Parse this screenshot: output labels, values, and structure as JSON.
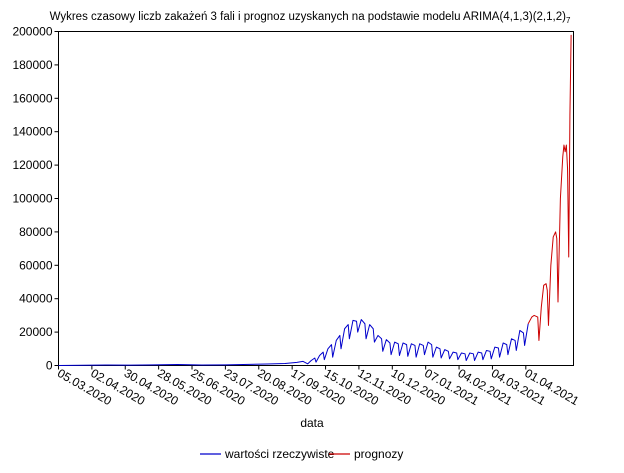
{
  "chart_data": {
    "type": "line",
    "title": "Wykres czasowy liczb zakażeń 3 fali i prognoz uzyskanych na podstawie modelu ARIMA(4,1,3)(2,1,2)",
    "title_subscript": "7",
    "xlabel": "data",
    "ylabel": "",
    "ylim": [
      0,
      200000
    ],
    "yticks": [
      0,
      20000,
      40000,
      60000,
      80000,
      100000,
      120000,
      140000,
      160000,
      180000,
      200000
    ],
    "xticks": [
      "05.03.2020",
      "02.04.2020",
      "30.04.2020",
      "28.05.2020",
      "25.06.2020",
      "23.07.2020",
      "20.08.2020",
      "17.09.2020",
      "15.10.2020",
      "12.11.2020",
      "10.12.2020",
      "07.01.2021",
      "04.02.2021",
      "04.03.2021",
      "01.04.2021"
    ],
    "x_start": "05.03.2020",
    "grid": false,
    "legend_position": "bottom",
    "series": [
      {
        "name": "wartości rzeczywiste",
        "color": "#0000cc",
        "points": [
          [
            0,
            0
          ],
          [
            20,
            150
          ],
          [
            40,
            300
          ],
          [
            60,
            200
          ],
          [
            80,
            350
          ],
          [
            100,
            600
          ],
          [
            120,
            300
          ],
          [
            140,
            400
          ],
          [
            160,
            700
          ],
          [
            175,
            900
          ],
          [
            190,
            1200
          ],
          [
            200,
            1900
          ],
          [
            205,
            2500
          ],
          [
            209,
            1000
          ],
          [
            212,
            3000
          ],
          [
            215,
            4500
          ],
          [
            216,
            2000
          ],
          [
            219,
            6000
          ],
          [
            222,
            8000
          ],
          [
            223,
            3500
          ],
          [
            226,
            10000
          ],
          [
            229,
            12500
          ],
          [
            230,
            5000
          ],
          [
            233,
            15000
          ],
          [
            236,
            18000
          ],
          [
            237,
            10000
          ],
          [
            240,
            22000
          ],
          [
            243,
            24500
          ],
          [
            244,
            16000
          ],
          [
            247,
            27000
          ],
          [
            250,
            26500
          ],
          [
            251,
            20000
          ],
          [
            254,
            27500
          ],
          [
            257,
            25000
          ],
          [
            258,
            16000
          ],
          [
            261,
            24500
          ],
          [
            264,
            22000
          ],
          [
            265,
            14000
          ],
          [
            268,
            18000
          ],
          [
            271,
            16000
          ],
          [
            272,
            8500
          ],
          [
            275,
            15500
          ],
          [
            278,
            13500
          ],
          [
            279,
            6500
          ],
          [
            282,
            14000
          ],
          [
            285,
            13000
          ],
          [
            286,
            6000
          ],
          [
            289,
            13500
          ],
          [
            292,
            12500
          ],
          [
            293,
            5500
          ],
          [
            296,
            13000
          ],
          [
            299,
            12000
          ],
          [
            300,
            5000
          ],
          [
            303,
            13000
          ],
          [
            306,
            12000
          ],
          [
            307,
            6500
          ],
          [
            310,
            14000
          ],
          [
            313,
            12500
          ],
          [
            314,
            5000
          ],
          [
            317,
            11000
          ],
          [
            320,
            10000
          ],
          [
            321,
            4500
          ],
          [
            324,
            9500
          ],
          [
            327,
            8500
          ],
          [
            328,
            4000
          ],
          [
            331,
            8000
          ],
          [
            334,
            7500
          ],
          [
            335,
            3500
          ],
          [
            338,
            7500
          ],
          [
            341,
            7000
          ],
          [
            342,
            3000
          ],
          [
            345,
            7500
          ],
          [
            348,
            7000
          ],
          [
            349,
            3000
          ],
          [
            352,
            8000
          ],
          [
            355,
            7500
          ],
          [
            356,
            3500
          ],
          [
            359,
            9000
          ],
          [
            362,
            8500
          ],
          [
            363,
            4000
          ],
          [
            366,
            11000
          ],
          [
            369,
            10500
          ],
          [
            370,
            5000
          ],
          [
            373,
            13500
          ],
          [
            376,
            12500
          ],
          [
            377,
            6500
          ],
          [
            380,
            16000
          ],
          [
            383,
            15000
          ],
          [
            384,
            9000
          ],
          [
            387,
            21000
          ],
          [
            390,
            19500
          ],
          [
            391,
            12000
          ],
          [
            394,
            25000
          ]
        ]
      },
      {
        "name": "prognozy",
        "color": "#cc0000",
        "points": [
          [
            394,
            25000
          ],
          [
            397,
            29000
          ],
          [
            399,
            30000
          ],
          [
            402,
            29000
          ],
          [
            403,
            15000
          ],
          [
            405,
            35000
          ],
          [
            407,
            48000
          ],
          [
            409,
            49000
          ],
          [
            410,
            45000
          ],
          [
            411,
            24000
          ],
          [
            413,
            60000
          ],
          [
            415,
            77000
          ],
          [
            417,
            80000
          ],
          [
            418,
            76000
          ],
          [
            419,
            38000
          ],
          [
            421,
            100000
          ],
          [
            423,
            125000
          ],
          [
            424,
            132000
          ],
          [
            425,
            128000
          ],
          [
            426,
            132000
          ],
          [
            427,
            118000
          ],
          [
            428,
            65000
          ],
          [
            429,
            150000
          ],
          [
            430,
            198000
          ]
        ]
      }
    ]
  }
}
